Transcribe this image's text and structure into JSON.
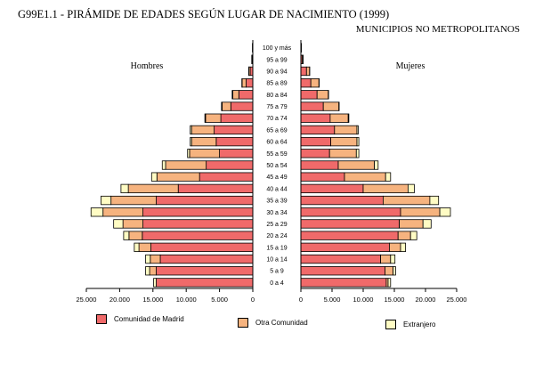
{
  "header": {
    "title": "G99E1.1  - PIRÁMIDE DE EDADES SEGÚN LUGAR DE NACIMIENTO (1999)",
    "subtitle": "MUNICIPIOS NO METROPOLITANOS"
  },
  "colors": {
    "madrid": "#f06a6a",
    "otra": "#f6b37f",
    "extranjero": "#fffcc4"
  },
  "chart_data": {
    "type": "bar",
    "orientation": "horizontal-pyramid",
    "stacked": true,
    "categories": [
      "0 a 4",
      "5 a 9",
      "10 a 14",
      "15 a 19",
      "20 a 24",
      "25 a 29",
      "30 a 34",
      "35 a 39",
      "40 a 44",
      "45 a 49",
      "50 a 54",
      "55 a 59",
      "60 a 64",
      "65 a 69",
      "70 a 74",
      "75 a 79",
      "80 a 84",
      "85 a 89",
      "90 a 94",
      "95 a 99",
      "100 y más"
    ],
    "left_panel_label": "Hombres",
    "right_panel_label": "Mujeres",
    "xlim": [
      0,
      25000
    ],
    "x_ticks_left": [
      "25.000",
      "20.000",
      "15.000",
      "10.000",
      "5.000",
      "0"
    ],
    "x_ticks_right": [
      "0",
      "5.000",
      "10.000",
      "15.000",
      "20.000",
      "25.000"
    ],
    "series_names": [
      "Comunidad de Madrid",
      "Otra Comunidad",
      "Extranjero"
    ],
    "hombres": [
      {
        "name": "Comunidad de Madrid",
        "values": [
          14500,
          14500,
          13900,
          15300,
          16600,
          16500,
          16500,
          14500,
          11200,
          8000,
          7000,
          5000,
          5500,
          5800,
          4800,
          3300,
          2100,
          1000,
          400,
          100,
          30
        ]
      },
      {
        "name": "Otra Comunidad",
        "values": [
          0,
          1000,
          1500,
          1800,
          2000,
          3000,
          6000,
          6800,
          7500,
          6400,
          6100,
          4500,
          3700,
          3400,
          2300,
          1300,
          900,
          600,
          200,
          50,
          10
        ]
      },
      {
        "name": "Extranjero",
        "values": [
          400,
          600,
          700,
          700,
          800,
          1400,
          1800,
          1500,
          1100,
          800,
          500,
          300,
          200,
          200,
          100,
          100,
          100,
          50,
          20,
          10,
          10
        ]
      }
    ],
    "mujeres": [
      {
        "name": "Comunidad de Madrid",
        "values": [
          13700,
          13500,
          12800,
          14200,
          15600,
          15800,
          16000,
          13200,
          10000,
          7000,
          6000,
          4600,
          4800,
          5400,
          4700,
          3600,
          2600,
          1600,
          900,
          200,
          40
        ]
      },
      {
        "name": "Otra Comunidad",
        "values": [
          300,
          1300,
          1600,
          1800,
          2000,
          3800,
          6300,
          7500,
          7200,
          6600,
          5800,
          4300,
          4200,
          3600,
          2900,
          2500,
          1800,
          1300,
          500,
          150,
          30
        ]
      },
      {
        "name": "Extranjero",
        "values": [
          400,
          400,
          700,
          800,
          1000,
          1300,
          1700,
          1400,
          1000,
          800,
          600,
          400,
          300,
          200,
          100,
          50,
          50,
          40,
          20,
          10,
          10
        ]
      }
    ]
  }
}
